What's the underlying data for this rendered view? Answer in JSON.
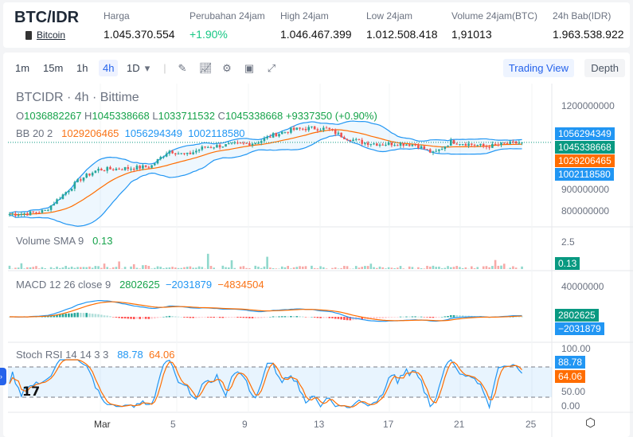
{
  "header": {
    "pair": "BTC/IDR",
    "coin": "Bitcoin",
    "stats": [
      {
        "label": "Harga",
        "value": "1.045.370.554"
      },
      {
        "label": "Perubahan 24jam",
        "value": "+1.90%"
      },
      {
        "label": "High 24jam",
        "value": "1.046.467.399"
      },
      {
        "label": "Low 24jam",
        "value": "1.012.508.418"
      },
      {
        "label": "Volume 24jam(BTC)",
        "value": "1,91013"
      },
      {
        "label": "24h Bab(IDR)",
        "value": "1.963.538.922"
      }
    ]
  },
  "toolbar": {
    "intervals": [
      "1m",
      "15m",
      "1h",
      "4h",
      "1D"
    ],
    "selected": "4h",
    "trading_view": "Trading View",
    "depth": "Depth"
  },
  "legend": {
    "title": "BTCIDR · 4h · Bittime",
    "o": "1036882267",
    "h": "1045338668",
    "l": "1033711532",
    "c": "1045338668",
    "chg": "+9337350 (+0.90%)",
    "bb": "BB 20 2",
    "bb_mid": "1029206465",
    "bb_up": "1056294349",
    "bb_lo": "1002118580",
    "vol": "Volume SMA 9",
    "vol_v": "0.13",
    "macd": "MACD 12 26 close 9",
    "macd_h": "2802625",
    "macd_m": "−2031879",
    "macd_s": "−4834504",
    "stoch": "Stoch RSI 14 14 3 3",
    "stoch_k": "88.78",
    "stoch_d": "64.06"
  },
  "price_axis": {
    "ticks": [
      "1200000000",
      "900000000",
      "800000000"
    ],
    "vol_tick": "2.5",
    "macd_tick": "40000000",
    "stoch_ticks": [
      "100.00",
      "50.00",
      "0.00"
    ]
  },
  "time_axis": [
    "Mar",
    "5",
    "9",
    "13",
    "17",
    "21",
    "25"
  ],
  "colors": {
    "up": "#26a69a",
    "down": "#ef5350",
    "bb": "#2196f3",
    "mid": "#ff6d00"
  },
  "chart_data": {
    "type": "candlestick",
    "closes_daily_approx": [
      820000000,
      822000000,
      830000000,
      880000000,
      930000000,
      960000000,
      962000000,
      965000000,
      970000000,
      1020000000,
      1005000000,
      1030000000,
      1035000000,
      1040000000,
      1045000000,
      1070000000,
      1085000000,
      1090000000,
      1088000000,
      1060000000,
      1045000000,
      1040000000,
      1042000000,
      1038000000,
      1010000000,
      1048000000,
      1040000000,
      1032000000,
      1040000000,
      1045338668
    ],
    "ylim": [
      780000000,
      1230000000
    ]
  }
}
